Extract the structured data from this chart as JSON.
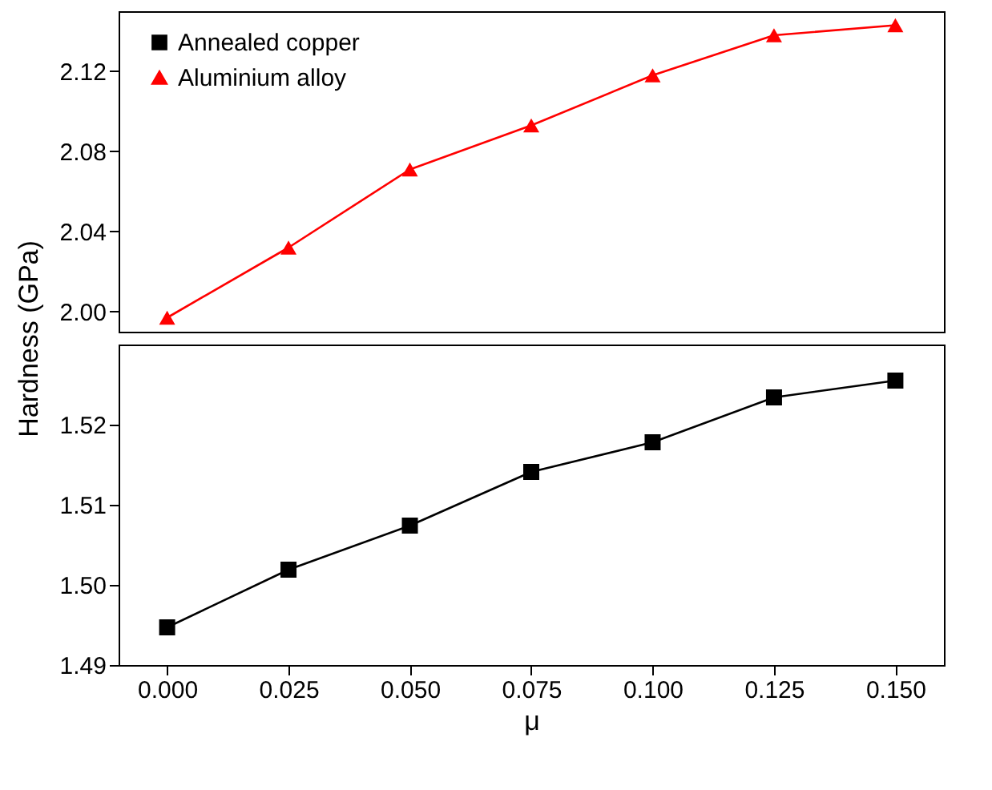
{
  "chart_data": [
    {
      "type": "line",
      "ylabel": "Hardness (GPa)",
      "x": [
        0,
        0.025,
        0.05,
        0.075,
        0.1,
        0.125,
        0.15
      ],
      "xlim": [
        -0.01,
        0.16
      ],
      "ylim": [
        1.99,
        2.15
      ],
      "yticks": [
        {
          "value": 2,
          "label": "2.00"
        },
        {
          "value": 2.04,
          "label": "2.04"
        },
        {
          "value": 2.08,
          "label": "2.08"
        },
        {
          "value": 2.12,
          "label": "2.12"
        }
      ],
      "tick_labels": "y",
      "legend": "top left",
      "grid": false,
      "series": [
        {
          "name": "Aluminium alloy",
          "color": "#ff0000",
          "marker": "triangle",
          "values": [
            1.997,
            2.032,
            2.071,
            2.093,
            2.118,
            2.138,
            2.143
          ]
        }
      ]
    },
    {
      "type": "line",
      "xlabel": "μ",
      "x": [
        0,
        0.025,
        0.05,
        0.075,
        0.1,
        0.125,
        0.15
      ],
      "xlim": [
        -0.01,
        0.16
      ],
      "xticks": [
        {
          "value": 0,
          "label": "0.000"
        },
        {
          "value": 0.025,
          "label": "0.025"
        },
        {
          "value": 0.05,
          "label": "0.050"
        },
        {
          "value": 0.075,
          "label": "0.075"
        },
        {
          "value": 0.1,
          "label": "0.100"
        },
        {
          "value": 0.125,
          "label": "0.125"
        },
        {
          "value": 0.15,
          "label": "0.150"
        }
      ],
      "ylim": [
        1.49,
        1.53
      ],
      "yticks": [
        {
          "value": 1.49,
          "label": "1.49"
        },
        {
          "value": 1.5,
          "label": "1.50"
        },
        {
          "value": 1.51,
          "label": "1.51"
        },
        {
          "value": 1.52,
          "label": "1.52"
        }
      ],
      "grid": false,
      "series": [
        {
          "name": "Annealed copper",
          "color": "#000000",
          "marker": "square",
          "values": [
            1.4947,
            1.5019,
            1.5074,
            1.5141,
            1.5178,
            1.5234,
            1.5255
          ]
        }
      ]
    }
  ]
}
